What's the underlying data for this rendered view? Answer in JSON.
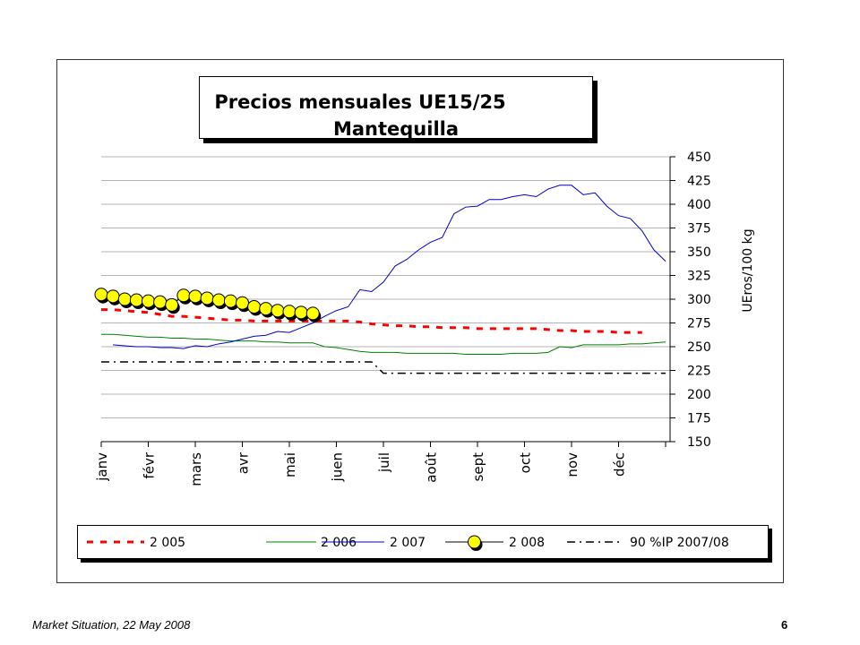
{
  "chart_data": {
    "type": "line",
    "title": "Precios mensuales UE15/25",
    "subtitle": "Mantequilla",
    "ylabel": "UEros/100 kg",
    "xlabel": "",
    "ylim": [
      150,
      450
    ],
    "yticks": [
      150,
      175,
      200,
      225,
      250,
      275,
      300,
      325,
      350,
      375,
      400,
      425,
      450
    ],
    "y_axis_side": "right",
    "grid": true,
    "legend_position": "bottom",
    "categories": [
      "janv",
      "févr",
      "mars",
      "avr",
      "mai",
      "juen",
      "juil",
      "août",
      "sept",
      "oct",
      "nov",
      "déc"
    ],
    "series": [
      {
        "name": "2 005",
        "color": "#ff0000",
        "style": "dashed",
        "x": [
          0,
          0.25,
          0.5,
          0.75,
          1,
          1.25,
          1.5,
          1.75,
          2,
          2.25,
          2.5,
          2.75,
          3,
          3.25,
          3.5,
          3.75,
          4,
          4.25,
          4.5,
          4.75,
          5,
          5.25,
          5.5,
          5.75,
          6,
          6.25,
          6.5,
          6.75,
          7,
          7.25,
          7.5,
          7.75,
          8,
          8.25,
          8.5,
          8.75,
          9,
          9.25,
          9.5,
          9.75,
          10,
          10.25,
          10.5,
          10.75,
          11,
          11.25,
          11.5
        ],
        "values": [
          289,
          289,
          288,
          287,
          286,
          284,
          282,
          282,
          281,
          280,
          279,
          278,
          278,
          277,
          277,
          277,
          277,
          277,
          277,
          277,
          277,
          277,
          276,
          274,
          273,
          272,
          272,
          271,
          271,
          270,
          270,
          270,
          269,
          269,
          269,
          269,
          269,
          269,
          268,
          267,
          267,
          266,
          266,
          266,
          265,
          265,
          265
        ]
      },
      {
        "name": "2 006",
        "color": "#008000",
        "style": "solid",
        "x": [
          0,
          0.25,
          0.5,
          0.75,
          1,
          1.25,
          1.5,
          1.75,
          2,
          2.25,
          2.5,
          2.75,
          3,
          3.25,
          3.5,
          3.75,
          4,
          4.25,
          4.5,
          4.75,
          5,
          5.25,
          5.5,
          5.75,
          6,
          6.25,
          6.5,
          6.75,
          7,
          7.25,
          7.5,
          7.75,
          8,
          8.25,
          8.5,
          8.75,
          9,
          9.25,
          9.5,
          9.75,
          10,
          10.25,
          10.5,
          10.75,
          11,
          11.25,
          11.5,
          11.75,
          12
        ],
        "values": [
          263,
          263,
          262,
          261,
          260,
          260,
          259,
          259,
          258,
          258,
          257,
          256,
          256,
          256,
          255,
          255,
          254,
          254,
          254,
          250,
          249,
          247,
          245,
          244,
          244,
          244,
          243,
          243,
          243,
          243,
          243,
          242,
          242,
          242,
          242,
          243,
          243,
          243,
          244,
          250,
          249,
          252,
          252,
          252,
          252,
          253,
          253,
          254,
          255
        ]
      },
      {
        "name": "2 007",
        "color": "#0000cc",
        "style": "solid",
        "x": [
          0.25,
          0.5,
          0.75,
          1,
          1.25,
          1.5,
          1.75,
          2,
          2.25,
          2.5,
          2.75,
          3,
          3.25,
          3.5,
          3.75,
          4,
          4.25,
          4.5,
          4.75,
          5,
          5.25,
          5.5,
          5.75,
          6,
          6.25,
          6.5,
          6.75,
          7,
          7.25,
          7.5,
          7.75,
          8,
          8.25,
          8.5,
          8.75,
          9,
          9.25,
          9.5,
          9.75,
          10,
          10.25,
          10.5,
          10.75,
          11,
          11.25,
          11.5,
          11.75,
          12
        ],
        "values": [
          252,
          251,
          250,
          250,
          249,
          249,
          248,
          251,
          250,
          253,
          255,
          258,
          261,
          262,
          266,
          265,
          270,
          275,
          282,
          288,
          292,
          310,
          308,
          318,
          335,
          342,
          352,
          360,
          365,
          390,
          397,
          398,
          405,
          405,
          408,
          410,
          408,
          416,
          420,
          420,
          410,
          412,
          398,
          388,
          385,
          372,
          352,
          340
        ]
      },
      {
        "name": "2 008",
        "color": "#000000",
        "marker_fill": "#ffff00",
        "style": "solid-markers",
        "x": [
          0,
          0.25,
          0.5,
          0.75,
          1,
          1.25,
          1.5,
          1.75,
          2,
          2.25,
          2.5,
          2.75,
          3,
          3.25,
          3.5,
          3.75,
          4,
          4.25,
          4.5
        ],
        "values": [
          305,
          303,
          300,
          299,
          298,
          297,
          294,
          304,
          303,
          301,
          299,
          298,
          296,
          292,
          290,
          288,
          287,
          286,
          285
        ]
      },
      {
        "name": "90 %IP 2007/08",
        "color": "#000000",
        "style": "dashdot",
        "x": [
          0,
          2,
          4,
          5,
          5.75,
          6,
          6.25,
          7,
          8,
          9,
          10,
          11,
          12
        ],
        "values": [
          234,
          234,
          234,
          234,
          234,
          222,
          222,
          222,
          222,
          222,
          222,
          222,
          222
        ]
      }
    ]
  },
  "footer": {
    "text": "Market Situation, 22 May 2008",
    "page": "6"
  }
}
